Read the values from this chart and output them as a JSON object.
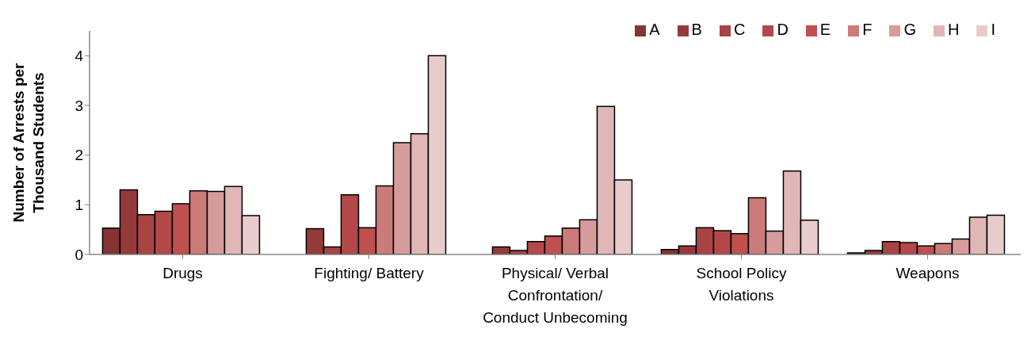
{
  "chart_data": {
    "type": "bar",
    "ylabel": "Number of Arrests per Thousand Students",
    "categories": [
      "Drugs",
      "Fighting/ Battery",
      "Physical/ Verbal Confrontation/ Conduct Unbecoming",
      "School Policy Violations",
      "Weapons"
    ],
    "series": [
      {
        "name": "A",
        "color": "#843434",
        "values": [
          0.53,
          0,
          0,
          0.1,
          0.03
        ]
      },
      {
        "name": "B",
        "color": "#953a3a",
        "values": [
          1.3,
          0.52,
          0.15,
          0.17,
          0.08
        ]
      },
      {
        "name": "C",
        "color": "#a84444",
        "values": [
          0.8,
          0.15,
          0.08,
          0.54,
          0.26
        ]
      },
      {
        "name": "D",
        "color": "#b44848",
        "values": [
          0.87,
          1.2,
          0.26,
          0.48,
          0.24
        ]
      },
      {
        "name": "E",
        "color": "#c0504d",
        "values": [
          1.02,
          0.54,
          0.37,
          0.42,
          0.17
        ]
      },
      {
        "name": "F",
        "color": "#cc7b7b",
        "values": [
          1.28,
          1.38,
          0.53,
          1.14,
          0.22
        ]
      },
      {
        "name": "G",
        "color": "#d69b9b",
        "values": [
          1.27,
          2.25,
          0.7,
          0.47,
          0.31
        ]
      },
      {
        "name": "H",
        "color": "#e0b6b6",
        "values": [
          1.37,
          2.43,
          2.98,
          1.68,
          0.75
        ]
      },
      {
        "name": "I",
        "color": "#e8cccc",
        "values": [
          0.78,
          4.0,
          1.5,
          0.69,
          0.79
        ]
      }
    ],
    "ylim": [
      0,
      4.5
    ],
    "yticks": [
      0,
      1,
      2,
      3,
      4
    ],
    "grid": false,
    "legend": "top right"
  }
}
